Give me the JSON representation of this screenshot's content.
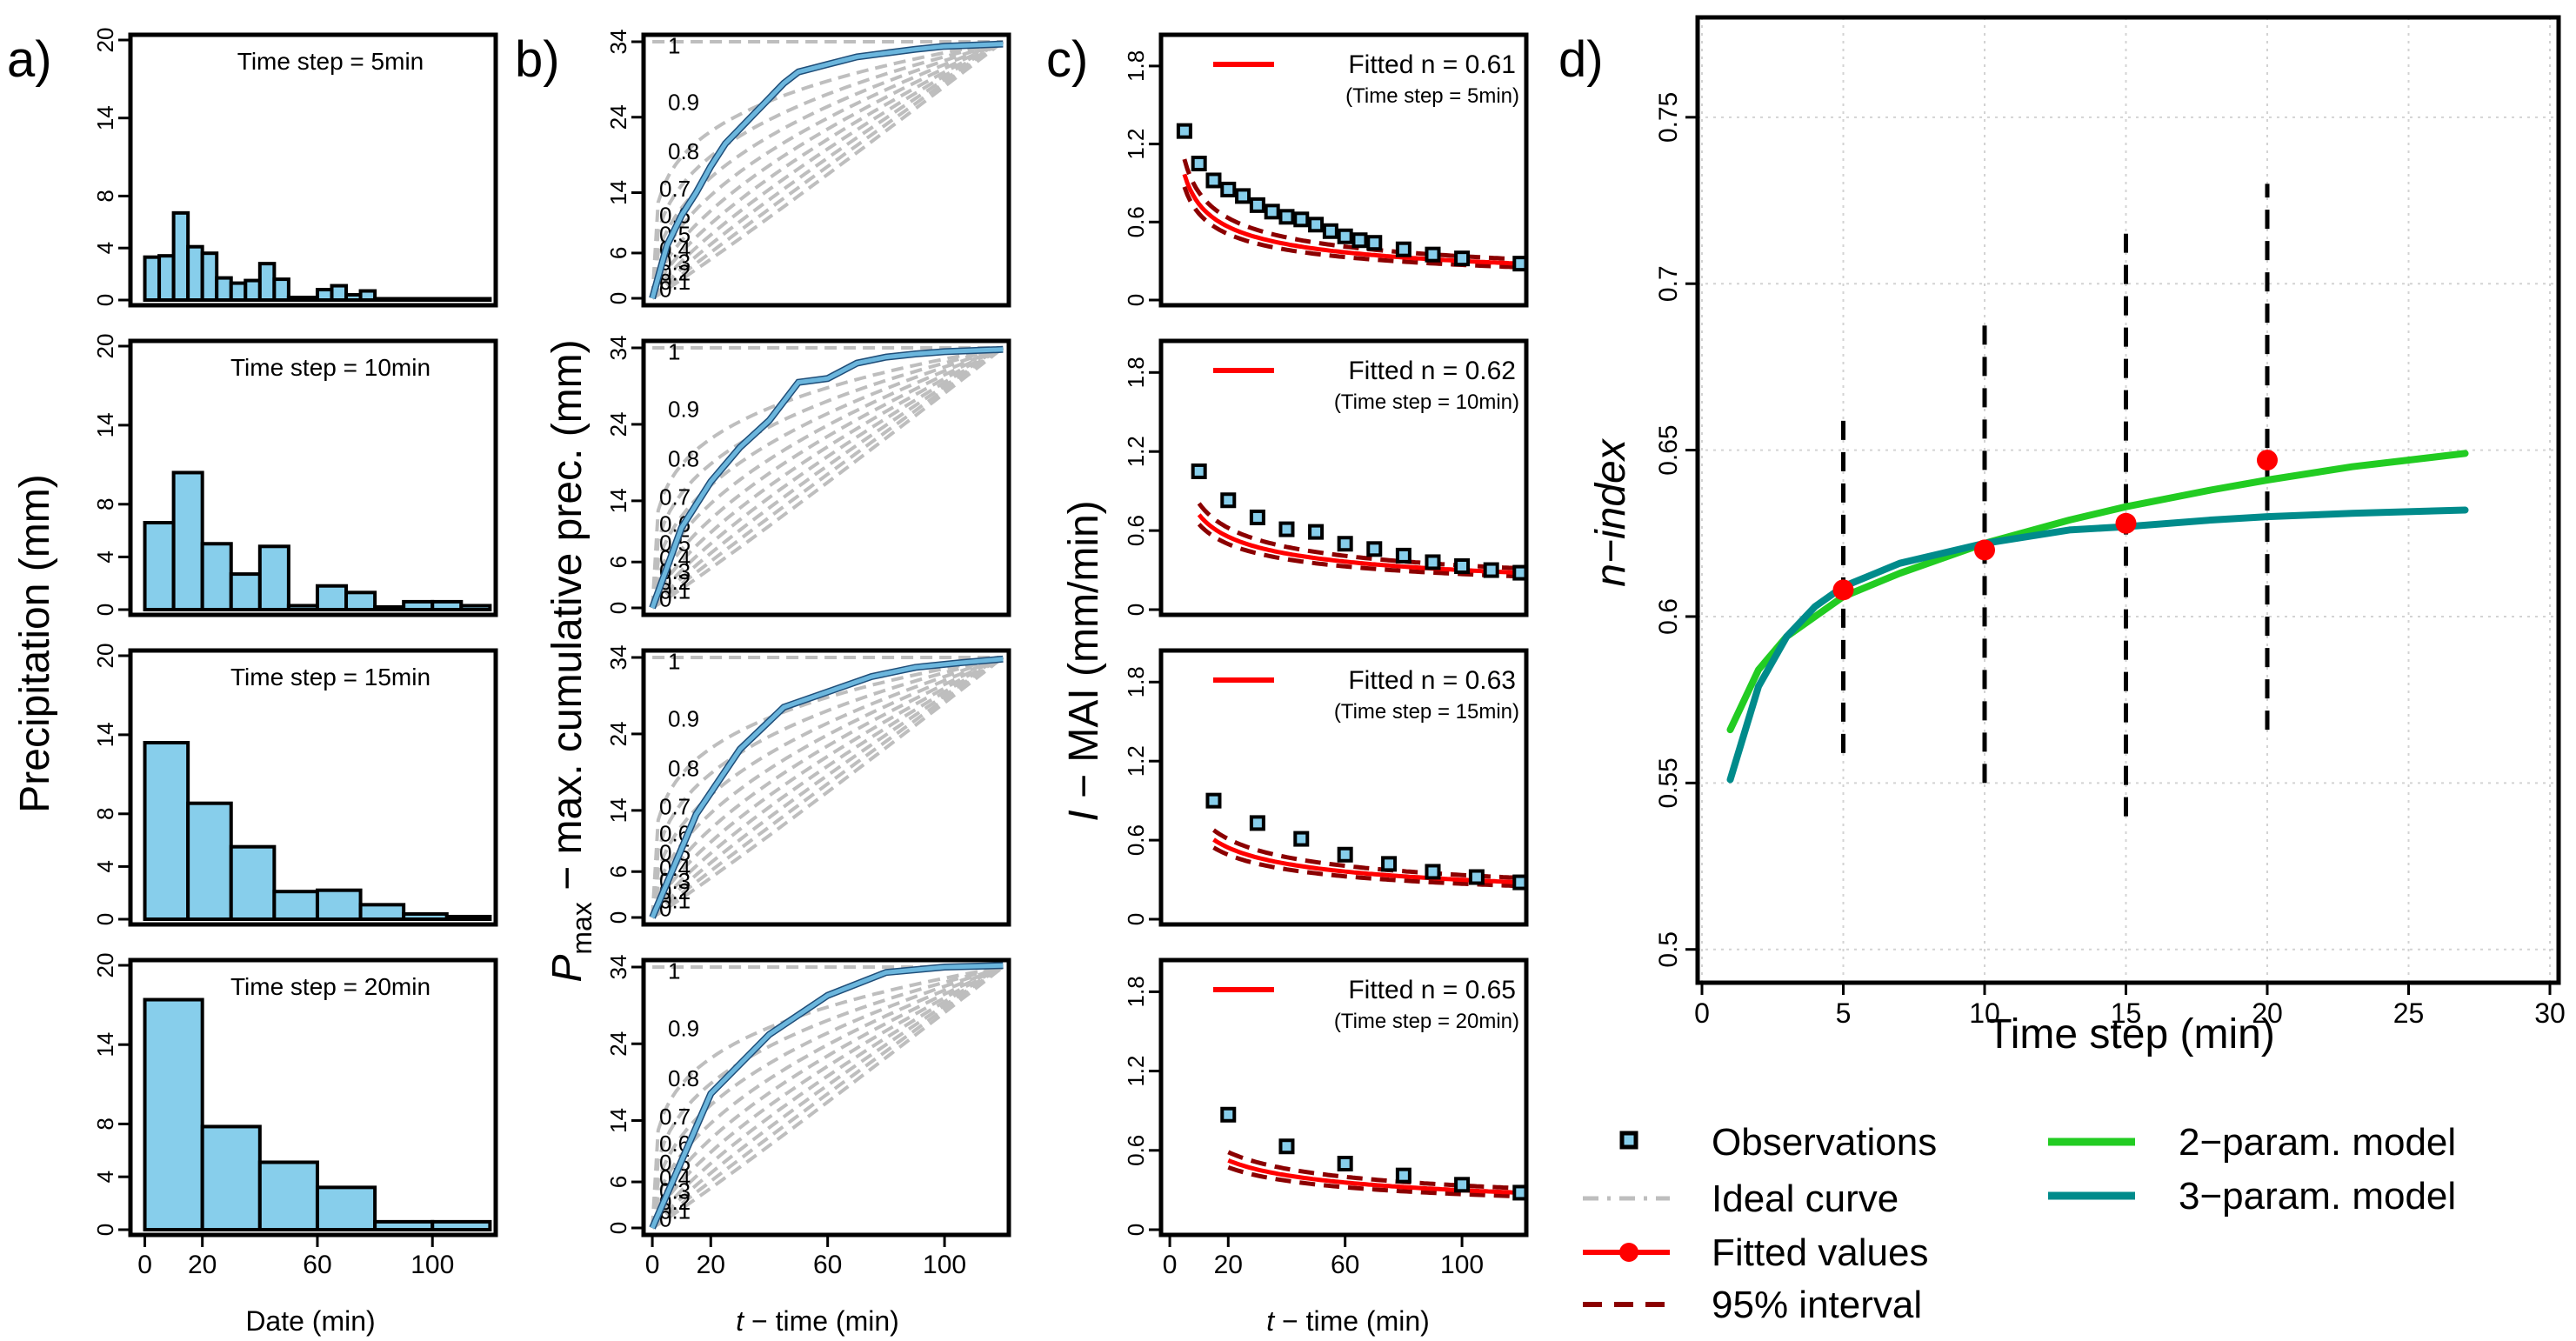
{
  "panel_labels": [
    "a)",
    "b)",
    "c)",
    "d)"
  ],
  "colors": {
    "bar_fill": "#87CEEB",
    "obs_curve": "#6BB6DD",
    "ideal": "#BEBEBE",
    "fitted": "#FF0000",
    "interval": "#8B0000",
    "two_param": "#22CC22",
    "three_param": "#008B8B",
    "grid": "#D3D3D3"
  },
  "chart_data": [
    {
      "id": "a",
      "type": "bar",
      "ylabel": "Precipitation (mm)",
      "xlabel": "Date (min)",
      "xticks": [
        0,
        20,
        60,
        100
      ],
      "yticks": [
        0,
        4,
        8,
        14,
        20
      ],
      "ylim": [
        0,
        20
      ],
      "xlim": [
        -5,
        122
      ],
      "panels": [
        {
          "title": "Time step = 5min",
          "bin_width": 5,
          "values": [
            3.3,
            3.4,
            6.7,
            4.1,
            3.6,
            1.7,
            1.3,
            1.5,
            2.8,
            1.6,
            0.2,
            0.2,
            0.8,
            1.1,
            0.4,
            0.7,
            0.1,
            0.1,
            0.1,
            0.1,
            0.1,
            0.1,
            0.1,
            0.1
          ]
        },
        {
          "title": "Time step = 10min",
          "bin_width": 10,
          "values": [
            6.6,
            10.4,
            5.0,
            2.7,
            4.8,
            0.3,
            1.8,
            1.3,
            0.2,
            0.6,
            0.6,
            0.3
          ]
        },
        {
          "title": "Time step = 15min",
          "bin_width": 15,
          "values": [
            13.4,
            8.8,
            5.5,
            2.1,
            2.2,
            1.1,
            0.4,
            0.2
          ]
        },
        {
          "title": "Time step = 20min",
          "bin_width": 20,
          "values": [
            17.4,
            7.8,
            5.1,
            3.2,
            0.6,
            0.6
          ]
        }
      ]
    },
    {
      "id": "b",
      "type": "line",
      "ylabel": "max. cumulative prec. (mm)",
      "ylabel_symbol": "P",
      "ylabel_sub": "max",
      "xlabel": "time (min)",
      "xlabel_symbol": "t",
      "xticks": [
        0,
        20,
        60,
        100
      ],
      "yticks": [
        0,
        6,
        14,
        24,
        34
      ],
      "ylim": [
        0,
        34
      ],
      "xlim": [
        -3,
        122
      ],
      "ideal_labels": [
        "1",
        "0.9",
        "0.8",
        "0.7",
        "0.6",
        "0.5",
        "0.4",
        "0.3",
        "0.2",
        "0.1",
        "0"
      ],
      "panels": [
        {
          "observed": {
            "x": [
              0,
              5,
              10,
              15,
              20,
              25,
              30,
              35,
              40,
              45,
              50,
              55,
              60,
              65,
              70,
              80,
              90,
              100,
              120
            ],
            "y": [
              0,
              7,
              11,
              14,
              17.5,
              20.5,
              22.5,
              24.5,
              26.5,
              28.5,
              30,
              30.5,
              31,
              31.5,
              32,
              32.5,
              33,
              33.4,
              33.7
            ]
          }
        },
        {
          "observed": {
            "x": [
              0,
              10,
              20,
              30,
              40,
              50,
              60,
              70,
              80,
              90,
              100,
              120
            ],
            "y": [
              0,
              10.5,
              16.5,
              21,
              24.5,
              29.5,
              30,
              32,
              32.8,
              33.2,
              33.5,
              33.8
            ]
          }
        },
        {
          "observed": {
            "x": [
              0,
              15,
              30,
              45,
              60,
              75,
              90,
              105,
              120
            ],
            "y": [
              0,
              13.5,
              22,
              27.5,
              29.5,
              31.5,
              32.7,
              33.3,
              33.8
            ]
          }
        },
        {
          "observed": {
            "x": [
              0,
              20,
              40,
              60,
              80,
              100,
              120
            ],
            "y": [
              0,
              17.5,
              25.2,
              30.3,
              33.3,
              34,
              34.2
            ]
          }
        }
      ]
    },
    {
      "id": "c",
      "type": "scatter",
      "ylabel": "MAI (mm/min)",
      "ylabel_symbol": "I",
      "xlabel": "time (min)",
      "xlabel_symbol": "t",
      "xticks": [
        0,
        20,
        60,
        100
      ],
      "yticks": [
        0,
        0.6,
        1.2,
        1.8
      ],
      "ylim": [
        0,
        2.0
      ],
      "xlim": [
        -3,
        122
      ],
      "panels": [
        {
          "legend": "Fitted n = 0.61",
          "note": "(Time step = 5min)",
          "n": 0.61,
          "start": 5,
          "obs_x": [
            5,
            10,
            15,
            20,
            25,
            30,
            35,
            40,
            45,
            50,
            55,
            60,
            65,
            70,
            80,
            90,
            100,
            120
          ],
          "obs_y": [
            1.3,
            1.05,
            0.92,
            0.85,
            0.8,
            0.73,
            0.68,
            0.64,
            0.62,
            0.58,
            0.53,
            0.49,
            0.46,
            0.44,
            0.39,
            0.35,
            0.32,
            0.28
          ]
        },
        {
          "legend": "Fitted n = 0.62",
          "note": "(Time step = 10min)",
          "n": 0.62,
          "start": 10,
          "obs_x": [
            10,
            20,
            30,
            40,
            50,
            60,
            70,
            80,
            90,
            100,
            110,
            120
          ],
          "obs_y": [
            1.05,
            0.83,
            0.7,
            0.61,
            0.59,
            0.5,
            0.46,
            0.41,
            0.36,
            0.33,
            0.3,
            0.28
          ]
        },
        {
          "legend": "Fitted n = 0.63",
          "note": "(Time step = 15min)",
          "n": 0.63,
          "start": 15,
          "obs_x": [
            15,
            30,
            45,
            60,
            75,
            90,
            105,
            120
          ],
          "obs_y": [
            0.9,
            0.73,
            0.61,
            0.49,
            0.42,
            0.36,
            0.32,
            0.28
          ]
        },
        {
          "legend": "Fitted n = 0.65",
          "note": "(Time step = 20min)",
          "n": 0.65,
          "start": 20,
          "obs_x": [
            20,
            40,
            60,
            80,
            100,
            120
          ],
          "obs_y": [
            0.87,
            0.63,
            0.5,
            0.41,
            0.34,
            0.28
          ]
        }
      ]
    },
    {
      "id": "d",
      "type": "line",
      "ylabel": "n−index",
      "xlabel": "Time step (min)",
      "xlim": [
        0,
        30
      ],
      "ylim": [
        0.49,
        0.78
      ],
      "xticks": [
        0,
        5,
        10,
        15,
        20,
        25,
        30
      ],
      "yticks": [
        0.5,
        0.55,
        0.6,
        0.65,
        0.7,
        0.75
      ],
      "ytick_labels": [
        "0.5",
        "0.55",
        "0.6",
        "0.65",
        "0.7",
        "0.75"
      ],
      "fitted": {
        "x": [
          5,
          10,
          15,
          20
        ],
        "y": [
          0.608,
          0.62,
          0.628,
          0.647
        ]
      },
      "intervals": [
        {
          "x": 5,
          "low": 0.559,
          "high": 0.66
        },
        {
          "x": 10,
          "low": 0.55,
          "high": 0.69
        },
        {
          "x": 15,
          "low": 0.54,
          "high": 0.715
        },
        {
          "x": 20,
          "low": 0.566,
          "high": 0.73
        }
      ],
      "series": [
        {
          "name": "2−param. model",
          "x": [
            1,
            2,
            3,
            5,
            7,
            10,
            13,
            15,
            18,
            20,
            23,
            27
          ],
          "y": [
            0.566,
            0.584,
            0.594,
            0.606,
            0.613,
            0.622,
            0.629,
            0.633,
            0.638,
            0.641,
            0.645,
            0.649
          ]
        },
        {
          "name": "3−param. model",
          "x": [
            1,
            2,
            3,
            4,
            5,
            7,
            10,
            13,
            15,
            18,
            20,
            23,
            27
          ],
          "y": [
            0.551,
            0.579,
            0.594,
            0.603,
            0.609,
            0.616,
            0.622,
            0.626,
            0.627,
            0.629,
            0.63,
            0.631,
            0.632
          ]
        }
      ]
    }
  ],
  "legend": {
    "observations": "Observations",
    "ideal": "Ideal curve",
    "fitted": "Fitted values",
    "interval": "95% interval",
    "two_param": "2−param. model",
    "three_param": "3−param. model"
  }
}
